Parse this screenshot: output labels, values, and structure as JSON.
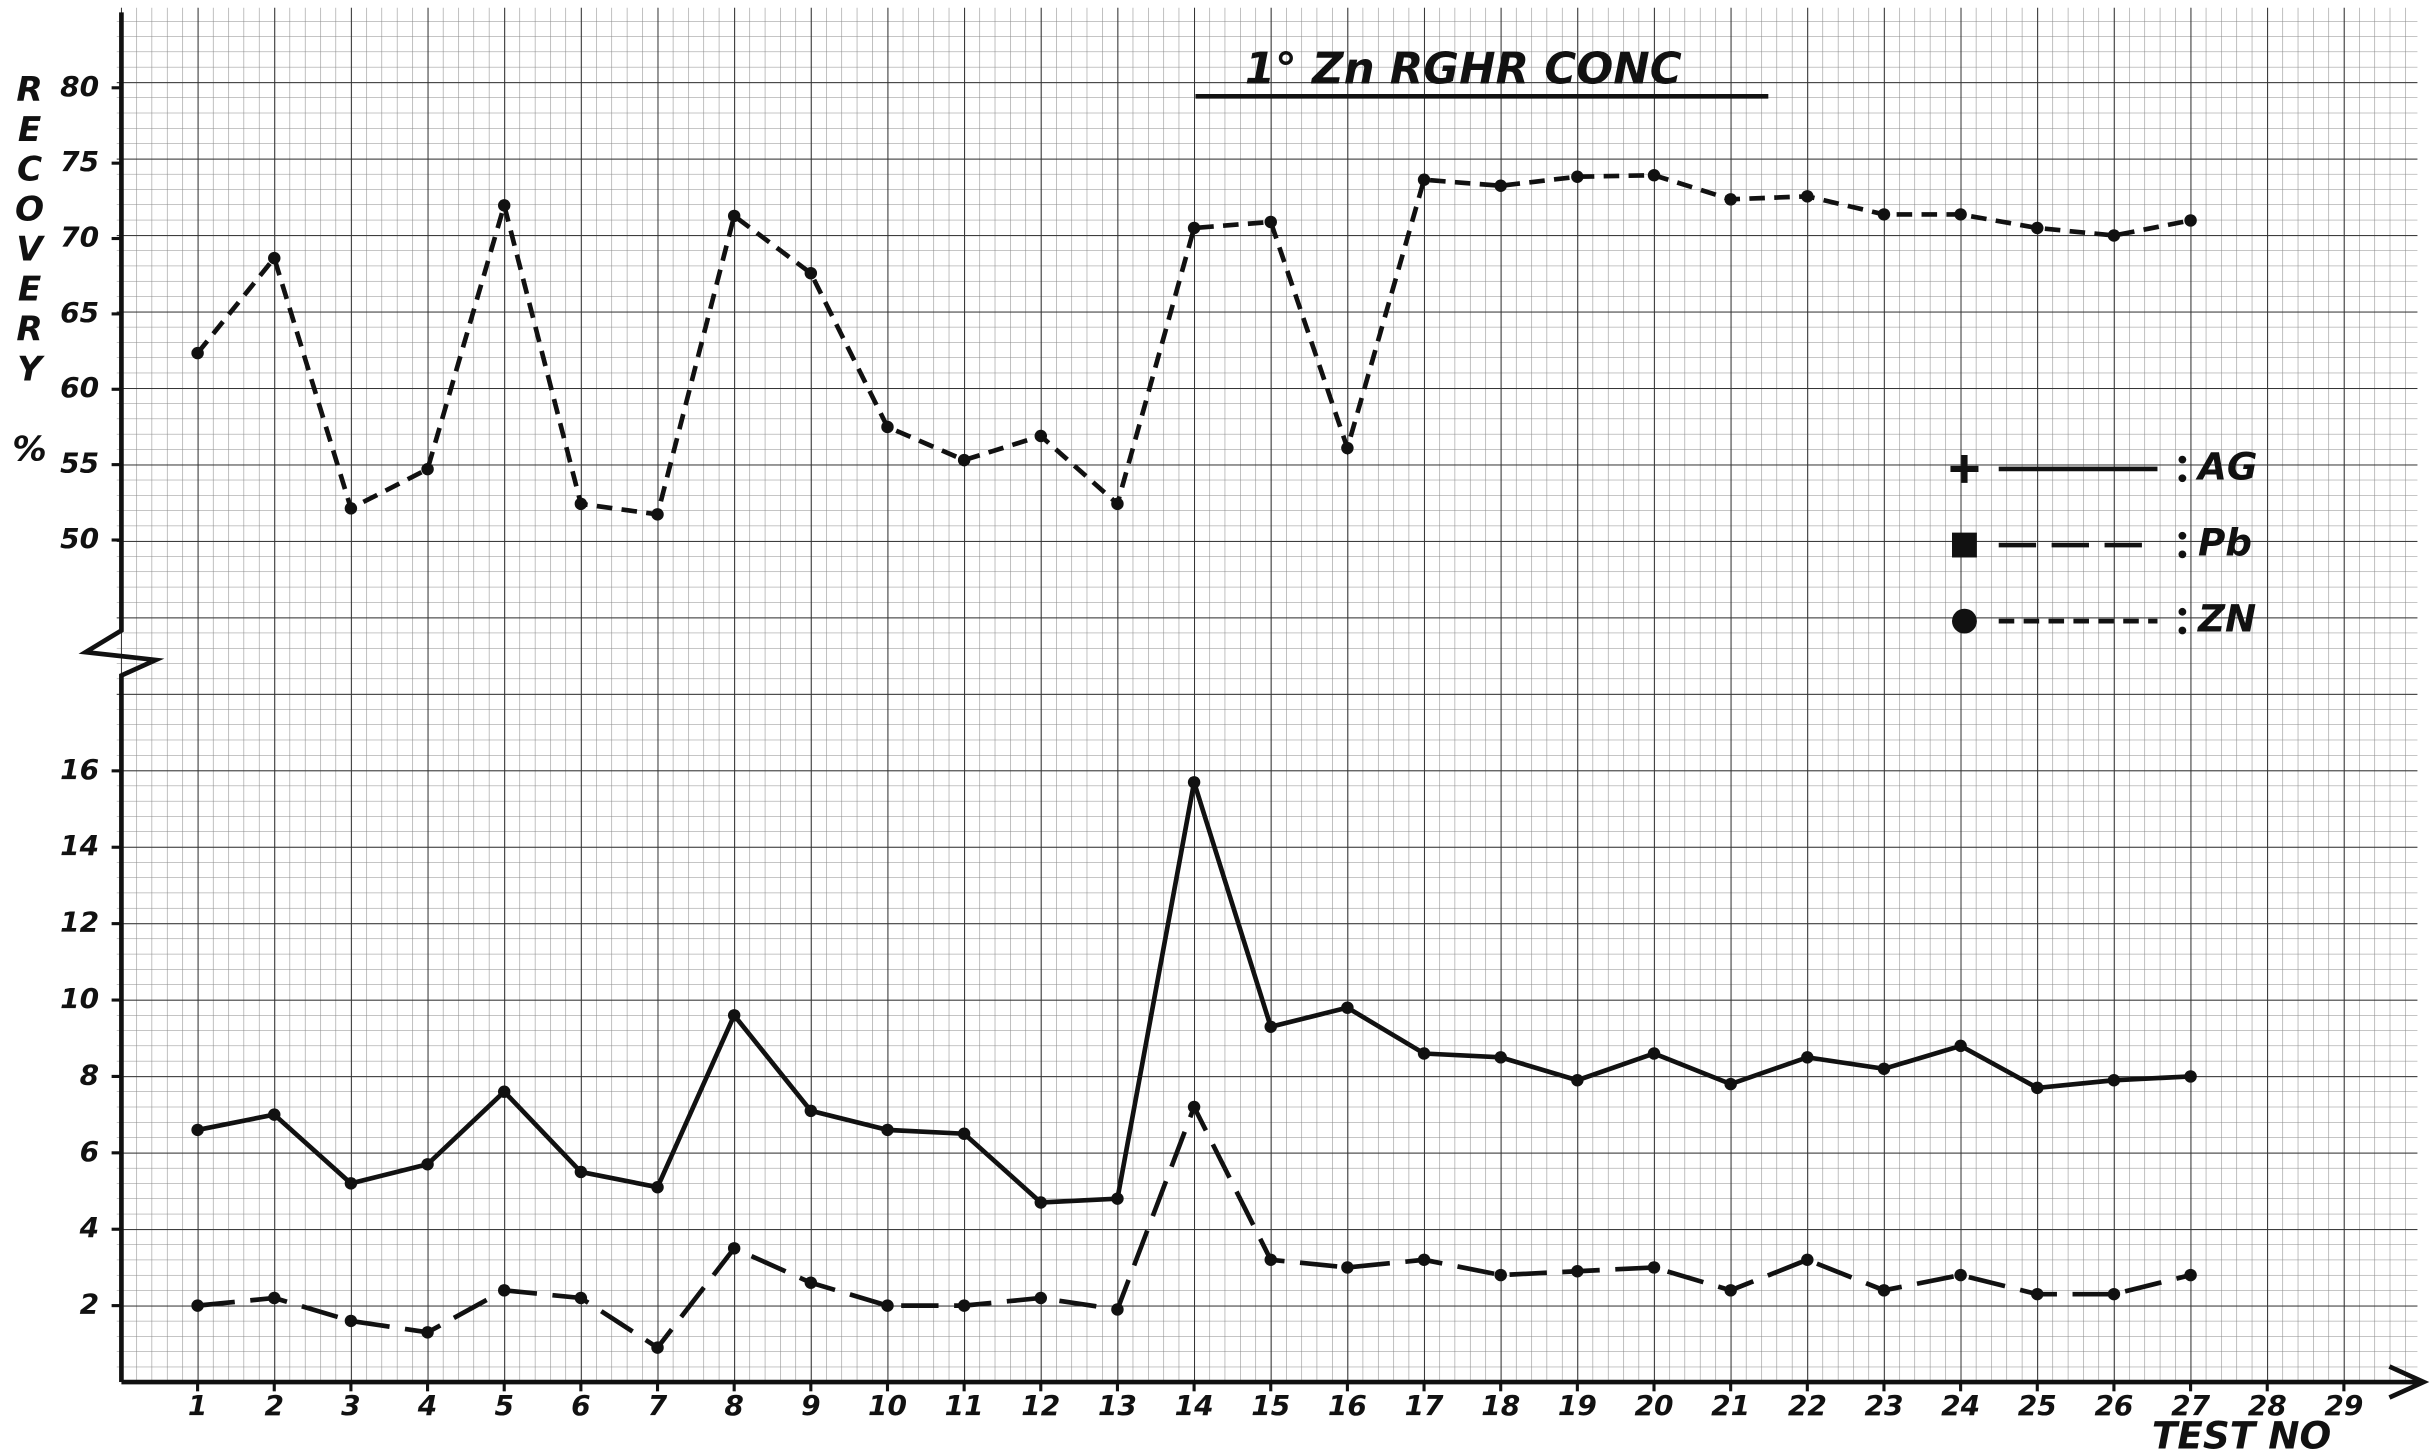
{
  "chart_data": [
    {
      "type": "line",
      "title": "1° Zn RGHR CONC",
      "ylabel": "RECOVERY %",
      "x": [
        1,
        2,
        3,
        4,
        5,
        6,
        7,
        8,
        9,
        10,
        11,
        12,
        13,
        14,
        15,
        16,
        17,
        18,
        19,
        20,
        21,
        22,
        23,
        24,
        25,
        26,
        27
      ],
      "xlim": [
        0,
        30
      ],
      "ylim": [
        44,
        85
      ],
      "yticks": [
        50,
        55,
        60,
        65,
        70,
        75,
        80
      ],
      "series": [
        {
          "name": "ZN",
          "color": "#111111",
          "dash": "short",
          "marker": "circle",
          "values": [
            62.4,
            68.7,
            52.1,
            54.7,
            72.2,
            52.4,
            51.7,
            71.5,
            67.7,
            57.5,
            55.3,
            56.9,
            52.4,
            70.7,
            71.1,
            56.1,
            73.9,
            73.5,
            74.1,
            74.2,
            72.6,
            72.8,
            71.6,
            71.6,
            70.7,
            70.2,
            71.2
          ]
        }
      ]
    },
    {
      "type": "line",
      "xlabel": "TEST NO",
      "x": [
        1,
        2,
        3,
        4,
        5,
        6,
        7,
        8,
        9,
        10,
        11,
        12,
        13,
        14,
        15,
        16,
        17,
        18,
        19,
        20,
        21,
        22,
        23,
        24,
        25,
        26,
        27
      ],
      "xlim": [
        0,
        30
      ],
      "xticks": [
        1,
        2,
        3,
        4,
        5,
        6,
        7,
        8,
        9,
        10,
        11,
        12,
        13,
        14,
        15,
        16,
        17,
        18,
        19,
        20,
        21,
        22,
        23,
        24,
        25,
        26,
        27,
        28,
        29
      ],
      "ylim": [
        0,
        18.7
      ],
      "yticks": [
        2,
        4,
        6,
        8,
        10,
        12,
        14,
        16
      ],
      "series": [
        {
          "name": "AG",
          "color": "#111111",
          "dash": "solid",
          "marker": "plus",
          "values": [
            6.6,
            7.0,
            5.2,
            5.7,
            7.6,
            5.5,
            5.1,
            9.6,
            7.1,
            6.6,
            6.5,
            4.7,
            4.8,
            15.7,
            9.3,
            9.8,
            8.6,
            8.5,
            7.9,
            8.6,
            7.8,
            8.5,
            8.2,
            8.8,
            7.7,
            7.9,
            8.0
          ]
        },
        {
          "name": "Pb",
          "color": "#111111",
          "dash": "long",
          "marker": "square",
          "values": [
            2.0,
            2.2,
            1.6,
            1.3,
            2.4,
            2.2,
            0.9,
            3.5,
            2.6,
            2.0,
            2.0,
            2.2,
            1.9,
            7.2,
            3.2,
            3.0,
            3.2,
            2.8,
            2.9,
            3.0,
            2.4,
            3.2,
            2.4,
            2.8,
            2.3,
            2.3,
            2.8
          ]
        }
      ]
    }
  ]
}
